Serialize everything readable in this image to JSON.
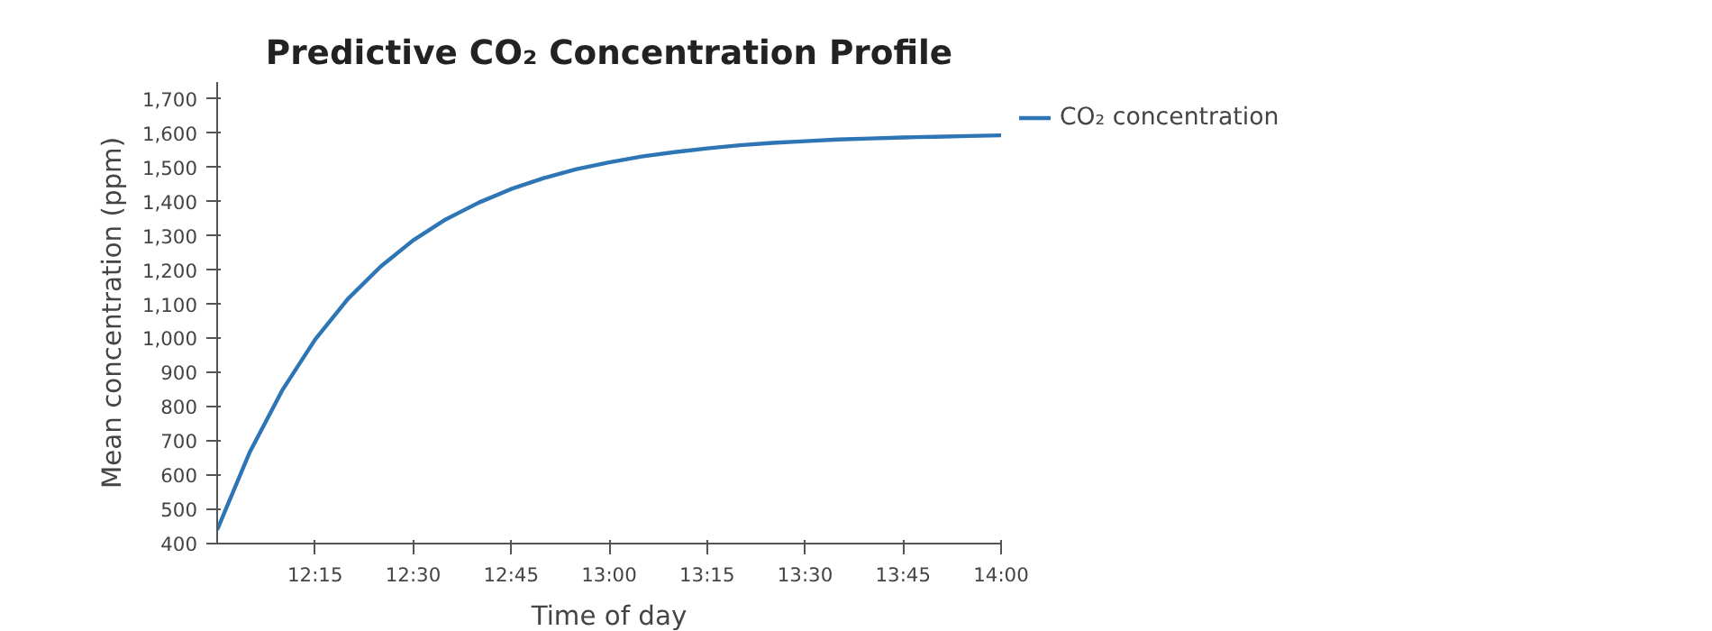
{
  "chart_data": {
    "type": "line",
    "title": "Predictive CO₂ Concentration Profile",
    "xlabel": "Time of day",
    "ylabel": "Mean concentration (ppm)",
    "x": [
      12,
      12.083,
      12.167,
      12.25,
      12.333,
      12.417,
      12.5,
      12.583,
      12.667,
      12.75,
      12.833,
      12.917,
      13,
      13.083,
      13.167,
      13.25,
      13.333,
      13.417,
      13.5,
      13.583,
      13.667,
      13.75,
      13.833,
      13.917,
      14
    ],
    "series": [
      {
        "name": "CO₂ concentration",
        "color": "#2e75b6",
        "values": [
          440,
          667,
          850,
          997,
          1115,
          1210,
          1287,
          1348,
          1397,
          1437,
          1469,
          1495,
          1515,
          1532,
          1545,
          1556,
          1565,
          1572,
          1577,
          1582,
          1585,
          1588,
          1590,
          1592,
          1594
        ]
      }
    ],
    "xlim": [
      12,
      14
    ],
    "ylim": [
      400,
      1750
    ],
    "xticks": [
      {
        "value": 12.25,
        "label": "12:15"
      },
      {
        "value": 12.5,
        "label": "12:30"
      },
      {
        "value": 12.75,
        "label": "12:45"
      },
      {
        "value": 13,
        "label": "13:00"
      },
      {
        "value": 13.25,
        "label": "13:15"
      },
      {
        "value": 13.5,
        "label": "13:30"
      },
      {
        "value": 13.75,
        "label": "13:45"
      },
      {
        "value": 14,
        "label": "14:00"
      }
    ],
    "yticks": [
      400,
      500,
      600,
      700,
      800,
      900,
      {
        "value": 1000,
        "label": "1,000"
      },
      {
        "value": 1100,
        "label": "1,100"
      },
      {
        "value": 1200,
        "label": "1,200"
      },
      {
        "value": 1300,
        "label": "1,300"
      },
      {
        "value": 1400,
        "label": "1,400"
      },
      {
        "value": 1500,
        "label": "1,500"
      },
      {
        "value": 1600,
        "label": "1,600"
      },
      {
        "value": 1700,
        "label": "1,700"
      }
    ],
    "grid": false,
    "legend": "top right",
    "marker": "none",
    "line_style": "solid"
  }
}
